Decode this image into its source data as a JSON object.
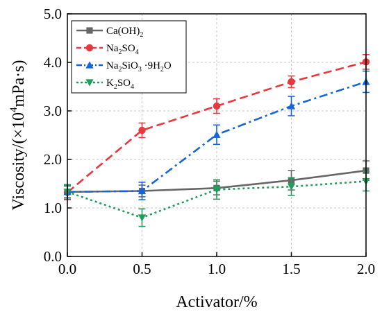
{
  "chart_data": {
    "type": "line",
    "x": [
      0.0,
      0.5,
      1.0,
      1.5,
      2.0
    ],
    "xlim": [
      0.0,
      2.0
    ],
    "ylim": [
      0.0,
      5.0
    ],
    "x_ticks": [
      "0.0",
      "0.5",
      "1.0",
      "1.5",
      "2.0"
    ],
    "y_ticks": [
      "0.0",
      "1.0",
      "2.0",
      "3.0",
      "4.0",
      "5.0"
    ],
    "xlabel": "Activator/%",
    "ylabel": {
      "prefix": "Viscosity/(×10",
      "exponent": "4",
      "suffix": "mPa·s)"
    },
    "grid": true,
    "legend_position": "top-left",
    "series": [
      {
        "name_parts": [
          [
            "Ca(OH)",
            false
          ],
          [
            "2",
            true
          ]
        ],
        "color": "#666666",
        "line_style": "solid",
        "marker": "square",
        "values": [
          1.33,
          1.35,
          1.41,
          1.57,
          1.77
        ],
        "errors": [
          0.12,
          0.12,
          0.14,
          0.2,
          0.2
        ]
      },
      {
        "name_parts": [
          [
            "Na",
            false
          ],
          [
            "2",
            true
          ],
          [
            "SO",
            false
          ],
          [
            "4",
            true
          ]
        ],
        "color": "#e8383d",
        "line_style": "dashed",
        "marker": "circle",
        "values": [
          1.32,
          2.6,
          3.1,
          3.6,
          4.01
        ],
        "errors": [
          0.15,
          0.15,
          0.15,
          0.12,
          0.15
        ]
      },
      {
        "name_parts": [
          [
            "Na",
            false
          ],
          [
            "2",
            true
          ],
          [
            "SiO",
            false
          ],
          [
            "3",
            true
          ],
          [
            " ·9H",
            false
          ],
          [
            "2",
            true
          ],
          [
            "O",
            false
          ]
        ],
        "color": "#1565d8",
        "line_style": "dashdot",
        "marker": "triangle-up",
        "values": [
          1.33,
          1.35,
          2.51,
          3.1,
          3.6
        ],
        "errors": [
          0.15,
          0.18,
          0.2,
          0.2,
          0.22
        ]
      },
      {
        "name_parts": [
          [
            "K",
            false
          ],
          [
            "2",
            true
          ],
          [
            "SO",
            false
          ],
          [
            "4",
            true
          ]
        ],
        "color": "#1e9e5b",
        "line_style": "dotted",
        "marker": "triangle-down",
        "values": [
          1.33,
          0.8,
          1.38,
          1.44,
          1.55
        ],
        "errors": [
          0.15,
          0.18,
          0.2,
          0.18,
          0.2
        ]
      }
    ]
  }
}
